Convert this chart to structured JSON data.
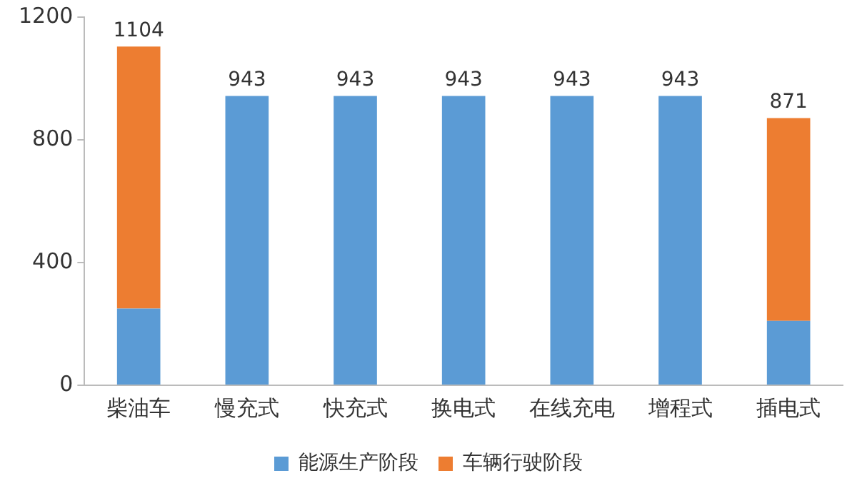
{
  "chart_data": {
    "type": "bar",
    "stacked": true,
    "categories": [
      "柴油车",
      "慢充式",
      "快充式",
      "换电式",
      "在线充电",
      "增程式",
      "插电式"
    ],
    "series": [
      {
        "name": "能源生产阶段",
        "color": "#5b9bd5",
        "values": [
          250,
          943,
          943,
          943,
          943,
          943,
          210
        ]
      },
      {
        "name": "车辆行驶阶段",
        "color": "#ed7d31",
        "values": [
          854,
          null,
          null,
          null,
          null,
          null,
          661
        ]
      }
    ],
    "totals": [
      "1104",
      "943",
      "943",
      "943",
      "943",
      "943",
      "871"
    ],
    "ylim": [
      0,
      1200
    ],
    "yticks": [
      0,
      400,
      800,
      1200
    ],
    "grid": false,
    "legend": "bottom"
  }
}
